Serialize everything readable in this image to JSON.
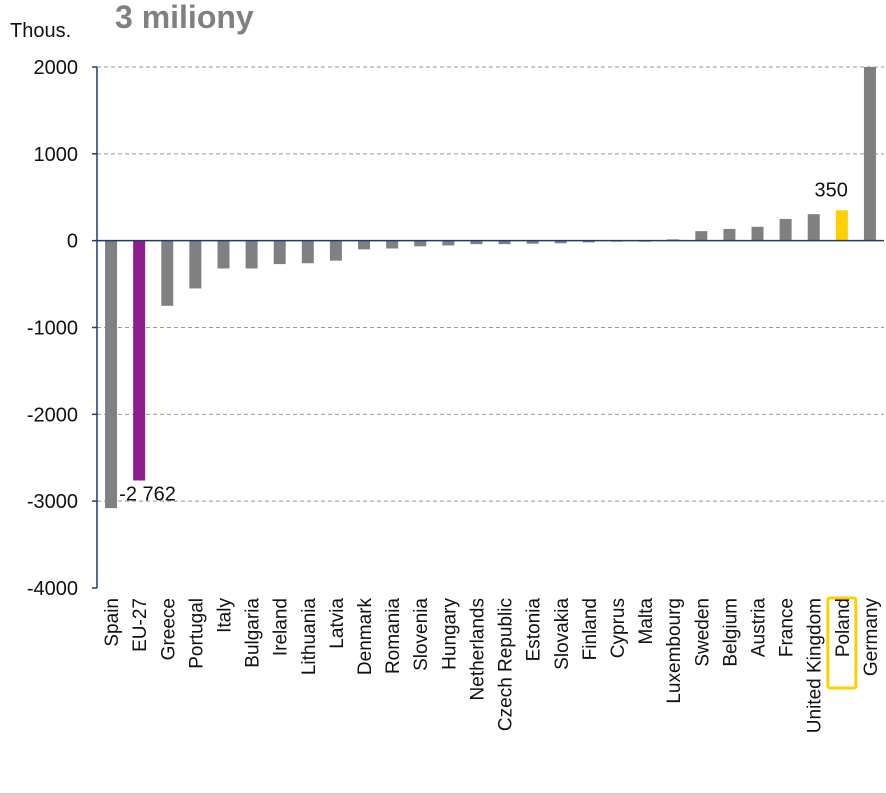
{
  "header": {
    "unit_label": "Thous.",
    "title": "3 miliony"
  },
  "colors": {
    "default_bar": "#808080",
    "eu_bar": "#8e1e8e",
    "highlight_bar": "#ffd000",
    "highlight_box": "#ffd000",
    "axis": "#1f3b73",
    "grid": "#999999"
  },
  "chart_data": {
    "type": "bar",
    "title": "3 miliony",
    "ylabel": "Thous.",
    "xlabel": "",
    "ylim": [
      -4000,
      2000
    ],
    "yticks": [
      2000,
      1000,
      0,
      -1000,
      -2000,
      -3000,
      -4000
    ],
    "grid": true,
    "legend": "none",
    "categories": [
      "Spain",
      "EU-27",
      "Greece",
      "Portugal",
      "Italy",
      "Bulgaria",
      "Ireland",
      "Lithuania",
      "Latvia",
      "Denmark",
      "Romania",
      "Slovenia",
      "Hungary",
      "Netherlands",
      "Czech Republic",
      "Estonia",
      "Slovakia",
      "Finland",
      "Cyprus",
      "Malta",
      "Luxembourg",
      "Sweden",
      "Belgium",
      "Austria",
      "France",
      "United Kingdom",
      "Poland",
      "Germany"
    ],
    "values": [
      -3080,
      -2762,
      -750,
      -550,
      -320,
      -320,
      -270,
      -260,
      -230,
      -100,
      -90,
      -65,
      -55,
      -40,
      -40,
      -35,
      -30,
      -20,
      -5,
      -5,
      15,
      110,
      135,
      160,
      250,
      305,
      350,
      2000
    ],
    "bar_colors": [
      "#808080",
      "#8e1e8e",
      "#808080",
      "#808080",
      "#808080",
      "#808080",
      "#808080",
      "#808080",
      "#808080",
      "#808080",
      "#808080",
      "#808080",
      "#808080",
      "#808080",
      "#808080",
      "#808080",
      "#808080",
      "#808080",
      "#808080",
      "#808080",
      "#808080",
      "#808080",
      "#808080",
      "#808080",
      "#808080",
      "#808080",
      "#ffd000",
      "#808080"
    ],
    "data_labels": [
      {
        "category": "EU-27",
        "text": "-2 762"
      },
      {
        "category": "Poland",
        "text": "350"
      }
    ],
    "highlighted_category": "Poland"
  }
}
